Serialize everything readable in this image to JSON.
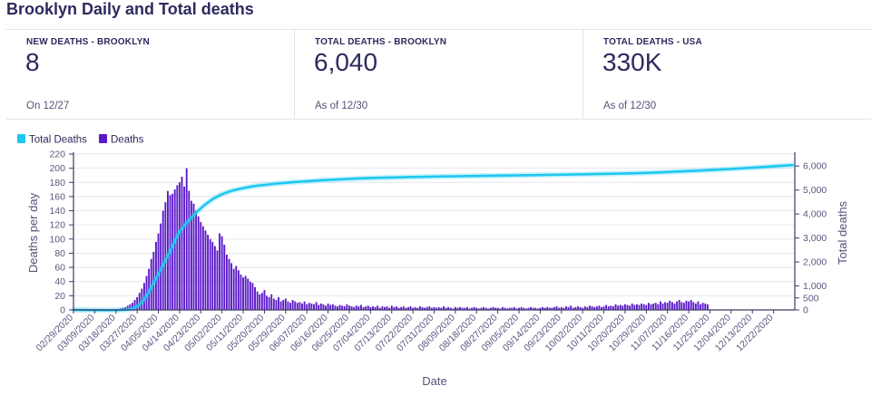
{
  "page": {
    "title": "Brooklyn Daily and Total deaths"
  },
  "stats": [
    {
      "label": "NEW DEATHS - BROOKLYN",
      "value": "8",
      "note": "On 12/27"
    },
    {
      "label": "TOTAL DEATHS - BROOKLYN",
      "value": "6,040",
      "note": "As of 12/30"
    },
    {
      "label": "TOTAL DEATHS - USA",
      "value": "330K",
      "note": "As of 12/30"
    }
  ],
  "colors": {
    "bars": "#5b19c9",
    "line": "#1ec8f0",
    "grid": "#e6e6ee",
    "axis": "#3c3a68"
  },
  "chart_data": {
    "type": "bar+line",
    "title": "",
    "legend": {
      "placement": "top-left",
      "entries": [
        "Total Deaths",
        "Deaths"
      ]
    },
    "xlabel": "Date",
    "ylabel": "Deaths per day",
    "y2label": "Total deaths",
    "ylim": [
      0,
      220
    ],
    "y2lim": [
      0,
      6500
    ],
    "yticks": [
      "0",
      "20",
      "40",
      "60",
      "80",
      "100",
      "120",
      "140",
      "160",
      "180",
      "200",
      "220"
    ],
    "y2ticks": [
      "0",
      "500",
      "1,000",
      "2,000",
      "3,000",
      "4,000",
      "5,000",
      "6,000"
    ],
    "xticks": [
      "02/29/2020",
      "03/09/2020",
      "03/18/2020",
      "03/27/2020",
      "04/05/2020",
      "04/14/2020",
      "04/23/2020",
      "05/02/2020",
      "05/11/2020",
      "05/20/2020",
      "05/29/2020",
      "06/07/2020",
      "06/16/2020",
      "06/25/2020",
      "07/04/2020",
      "07/13/2020",
      "07/22/2020",
      "07/31/2020",
      "08/09/2020",
      "08/18/2020",
      "08/27/2020",
      "09/05/2020",
      "09/14/2020",
      "09/23/2020",
      "10/02/2020",
      "10/11/2020",
      "10/20/2020",
      "10/29/2020",
      "11/07/2020",
      "11/16/2020",
      "11/25/2020",
      "12/04/2020",
      "12/13/2020",
      "12/22/2020"
    ],
    "series": [
      {
        "name": "Deaths",
        "axis": "left",
        "start": "02/29/2020",
        "values": [
          0,
          0,
          0,
          0,
          0,
          0,
          0,
          0,
          0,
          0,
          0,
          0,
          0,
          0,
          0,
          0,
          0,
          0,
          1,
          0,
          2,
          3,
          4,
          6,
          8,
          10,
          14,
          18,
          24,
          30,
          38,
          48,
          58,
          72,
          82,
          96,
          108,
          122,
          140,
          152,
          168,
          162,
          164,
          170,
          176,
          180,
          188,
          174,
          200,
          168,
          154,
          150,
          140,
          132,
          124,
          118,
          112,
          106,
          100,
          96,
          90,
          84,
          108,
          104,
          92,
          78,
          72,
          66,
          58,
          62,
          56,
          50,
          46,
          48,
          44,
          40,
          38,
          32,
          26,
          22,
          24,
          28,
          20,
          18,
          22,
          16,
          14,
          18,
          12,
          14,
          16,
          12,
          10,
          14,
          12,
          10,
          11,
          9,
          12,
          8,
          10,
          9,
          8,
          11,
          7,
          9,
          8,
          6,
          9,
          7,
          8,
          6,
          5,
          7,
          6,
          5,
          8,
          6,
          5,
          4,
          6,
          5,
          7,
          4,
          5,
          6,
          4,
          5,
          4,
          6,
          3,
          5,
          4,
          5,
          3,
          6,
          4,
          5,
          3,
          4,
          5,
          3,
          4,
          5,
          3,
          4,
          3,
          5,
          4,
          3,
          4,
          5,
          3,
          4,
          3,
          4,
          3,
          5,
          3,
          4,
          3,
          2,
          4,
          3,
          4,
          3,
          3,
          4,
          2,
          3,
          4,
          3,
          2,
          3,
          4,
          3,
          2,
          3,
          4,
          3,
          3,
          2,
          4,
          3,
          2,
          3,
          3,
          4,
          2,
          3,
          4,
          3,
          2,
          3,
          4,
          3,
          3,
          2,
          3,
          4,
          3,
          4,
          3,
          3,
          4,
          5,
          3,
          4,
          3,
          5,
          4,
          6,
          3,
          4,
          5,
          4,
          3,
          5,
          4,
          6,
          5,
          4,
          5,
          6,
          4,
          5,
          7,
          5,
          6,
          5,
          8,
          6,
          7,
          6,
          8,
          7,
          6,
          9,
          7,
          8,
          7,
          9,
          8,
          7,
          10,
          8,
          9,
          10,
          8,
          12,
          9,
          11,
          10,
          13,
          11,
          9,
          12,
          14,
          11,
          10,
          13,
          12,
          14,
          11,
          9,
          12,
          8,
          10,
          9,
          8
        ]
      },
      {
        "name": "Total Deaths",
        "axis": "right",
        "points": [
          [
            "02/29/2020",
            0
          ],
          [
            "03/21/2020",
            0
          ],
          [
            "03/27/2020",
            150
          ],
          [
            "03/31/2020",
            600
          ],
          [
            "04/05/2020",
            1500
          ],
          [
            "04/10/2020",
            2450
          ],
          [
            "04/14/2020",
            3250
          ],
          [
            "04/20/2020",
            3950
          ],
          [
            "04/27/2020",
            4550
          ],
          [
            "05/04/2020",
            4900
          ],
          [
            "05/15/2020",
            5150
          ],
          [
            "05/29/2020",
            5300
          ],
          [
            "06/16/2020",
            5420
          ],
          [
            "07/04/2020",
            5500
          ],
          [
            "07/31/2020",
            5560
          ],
          [
            "08/27/2020",
            5600
          ],
          [
            "09/23/2020",
            5640
          ],
          [
            "10/20/2020",
            5690
          ],
          [
            "11/07/2020",
            5750
          ],
          [
            "11/25/2020",
            5830
          ],
          [
            "12/13/2020",
            5930
          ],
          [
            "12/30/2020",
            6040
          ]
        ]
      }
    ]
  }
}
